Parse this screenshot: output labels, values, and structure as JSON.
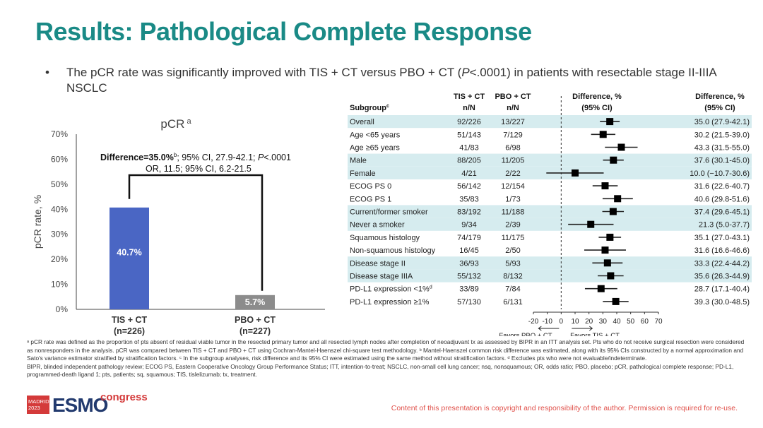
{
  "title": "Results: Pathological Complete Response",
  "bullet": {
    "pre": "The pCR rate was significantly improved with TIS + CT versus PBO + CT (",
    "p": "P",
    "post": "<.0001) in patients with resectable stage II-IIIA NSCLC"
  },
  "chart_data": [
    {
      "type": "bar",
      "title": "pCR",
      "title_sup": "a",
      "ylabel": "pCR rate, %",
      "ylim": [
        0,
        70
      ],
      "yticks": [
        "0%",
        "10%",
        "20%",
        "30%",
        "40%",
        "50%",
        "60%",
        "70%"
      ],
      "categories": [
        "TIS + CT",
        "PBO + CT"
      ],
      "category_sublabels": [
        "(n=226)",
        "(n=227)"
      ],
      "values": [
        40.7,
        5.7
      ],
      "value_labels": [
        "40.7%",
        "5.7%"
      ],
      "colors": [
        "#4a66c4",
        "#8c8c8c"
      ],
      "annotation": {
        "line1_a": "Difference=35.0%",
        "line1_sup": "b",
        "line1_b": "; 95% CI, 27.9-42.1; ",
        "line1_p": "P",
        "line1_c": "<.0001",
        "line2": "OR, 11.5; 95% CI, 6.2-21.5"
      }
    },
    {
      "type": "forest",
      "headers": {
        "subgroup": "Subgroup",
        "subgroup_sup": "c",
        "tis": [
          "TIS + CT",
          "n/N"
        ],
        "pbo": [
          "PBO + CT",
          "n/N"
        ],
        "plot": [
          "Difference, %",
          "(95% CI)"
        ],
        "diff": [
          "Difference, %",
          "(95% CI)"
        ]
      },
      "xlim": [
        -20,
        70
      ],
      "xticks": [
        "-20",
        "-10",
        "0",
        "10",
        "20",
        "30",
        "40",
        "50",
        "60",
        "70"
      ],
      "favors_left": "Favors PBO + CT",
      "favors_right": "Favors TIS + CT",
      "rows": [
        {
          "label": "Overall",
          "tis": "92/226",
          "pbo": "13/227",
          "diff": 35.0,
          "lo": 27.9,
          "hi": 42.1,
          "text": "35.0 (27.9-42.1)",
          "shaded": true
        },
        {
          "label": "Age <65 years",
          "tis": "51/143",
          "pbo": "7/129",
          "diff": 30.2,
          "lo": 21.5,
          "hi": 39.0,
          "text": "30.2 (21.5-39.0)",
          "shaded": false
        },
        {
          "label": "Age ≥65 years",
          "tis": "41/83",
          "pbo": "6/98",
          "diff": 43.3,
          "lo": 31.5,
          "hi": 55.0,
          "text": "43.3 (31.5-55.0)",
          "shaded": false
        },
        {
          "label": "Male",
          "tis": "88/205",
          "pbo": "11/205",
          "diff": 37.6,
          "lo": 30.1,
          "hi": 45.0,
          "text": "37.6 (30.1-45.0)",
          "shaded": true
        },
        {
          "label": "Female",
          "tis": "4/21",
          "pbo": "2/22",
          "diff": 10.0,
          "lo": -10.7,
          "hi": 30.6,
          "text": "10.0 (−10.7-30.6)",
          "shaded": true
        },
        {
          "label": "ECOG PS 0",
          "tis": "56/142",
          "pbo": "12/154",
          "diff": 31.6,
          "lo": 22.6,
          "hi": 40.7,
          "text": "31.6 (22.6-40.7)",
          "shaded": false
        },
        {
          "label": "ECOG PS 1",
          "tis": "35/83",
          "pbo": "1/73",
          "diff": 40.6,
          "lo": 29.8,
          "hi": 51.6,
          "text": "40.6 (29.8-51.6)",
          "shaded": false
        },
        {
          "label": "Current/former smoker",
          "tis": "83/192",
          "pbo": "11/188",
          "diff": 37.4,
          "lo": 29.6,
          "hi": 45.1,
          "text": "37.4 (29.6-45.1)",
          "shaded": true
        },
        {
          "label": "Never a smoker",
          "tis": "9/34",
          "pbo": "2/39",
          "diff": 21.3,
          "lo": 5.0,
          "hi": 37.7,
          "text": "21.3 (5.0-37.7)",
          "shaded": true
        },
        {
          "label": "Squamous histology",
          "tis": "74/179",
          "pbo": "11/175",
          "diff": 35.1,
          "lo": 27.0,
          "hi": 43.1,
          "text": "35.1 (27.0-43.1)",
          "shaded": false
        },
        {
          "label": "Non-squamous histology",
          "tis": "16/45",
          "pbo": "2/50",
          "diff": 31.6,
          "lo": 16.6,
          "hi": 46.6,
          "text": "31.6 (16.6-46.6)",
          "shaded": false
        },
        {
          "label": "Disease stage II",
          "tis": "36/93",
          "pbo": "5/93",
          "diff": 33.3,
          "lo": 22.4,
          "hi": 44.2,
          "text": "33.3 (22.4-44.2)",
          "shaded": true
        },
        {
          "label": "Disease stage IIIA",
          "tis": "55/132",
          "pbo": "8/132",
          "diff": 35.6,
          "lo": 26.3,
          "hi": 44.9,
          "text": "35.6 (26.3-44.9)",
          "shaded": true
        },
        {
          "label": "PD-L1 expression <1%",
          "label_sup": "d",
          "tis": "33/89",
          "pbo": "7/84",
          "diff": 28.7,
          "lo": 17.1,
          "hi": 40.4,
          "text": "28.7 (17.1-40.4)",
          "shaded": false
        },
        {
          "label": "PD-L1 expression ≥1%",
          "tis": "57/130",
          "pbo": "6/131",
          "diff": 39.3,
          "lo": 30.0,
          "hi": 48.5,
          "text": "39.3 (30.0-48.5)",
          "shaded": false
        }
      ]
    }
  ],
  "footnotes": {
    "line1": "ᵃ pCR rate was defined as the proportion of pts absent of residual viable tumor in the resected primary tumor and all resected lymph nodes after completion of neoadjuvant tx as assessed by BIPR in an ITT analysis set. Pts who do not receive surgical resection were considered as nonresponders in the analysis. pCR was compared between TIS + CT and PBO + CT using Cochran-Mantel-Haenszel chi-square test methodology. ᵇ Mantel-Haenszel common risk difference was estimated, along with its 95% CIs constructed by a normal approximation and Sato's variance estimator stratified by stratification factors. ᶜ In the subgroup analyses, risk difference and its 95% CI were estimated using the same method without stratification factors. ᵈ Excludes pts who were not evaluable/indeterminate.",
    "line2": "BIPR, blinded independent pathology review; ECOG PS, Eastern Cooperative Oncology Group Performance Status; ITT, intention-to-treat; NSCLC, non-small cell lung cancer; nsq, nonsquamous; OR, odds ratio; PBO, placebo; pCR, pathological complete response; PD-L1, programmed-death ligand 1; pts, patients; sq, squamous; TIS, tislelizumab; tx, treatment."
  },
  "logo": {
    "city": "MADRID",
    "year": "2023",
    "brand": "ESMO",
    "suffix": "congress",
    "colors": {
      "brand": "#223a6e",
      "accent": "#d43a3a"
    }
  },
  "copyright": "Content of this presentation is copyright and responsibility of the author. Permission is required for re-use.",
  "colors": {
    "title": "#1a8a86",
    "row_shade": "#d6ecef",
    "bar_tis": "#4a66c4",
    "bar_pbo": "#8c8c8c"
  }
}
